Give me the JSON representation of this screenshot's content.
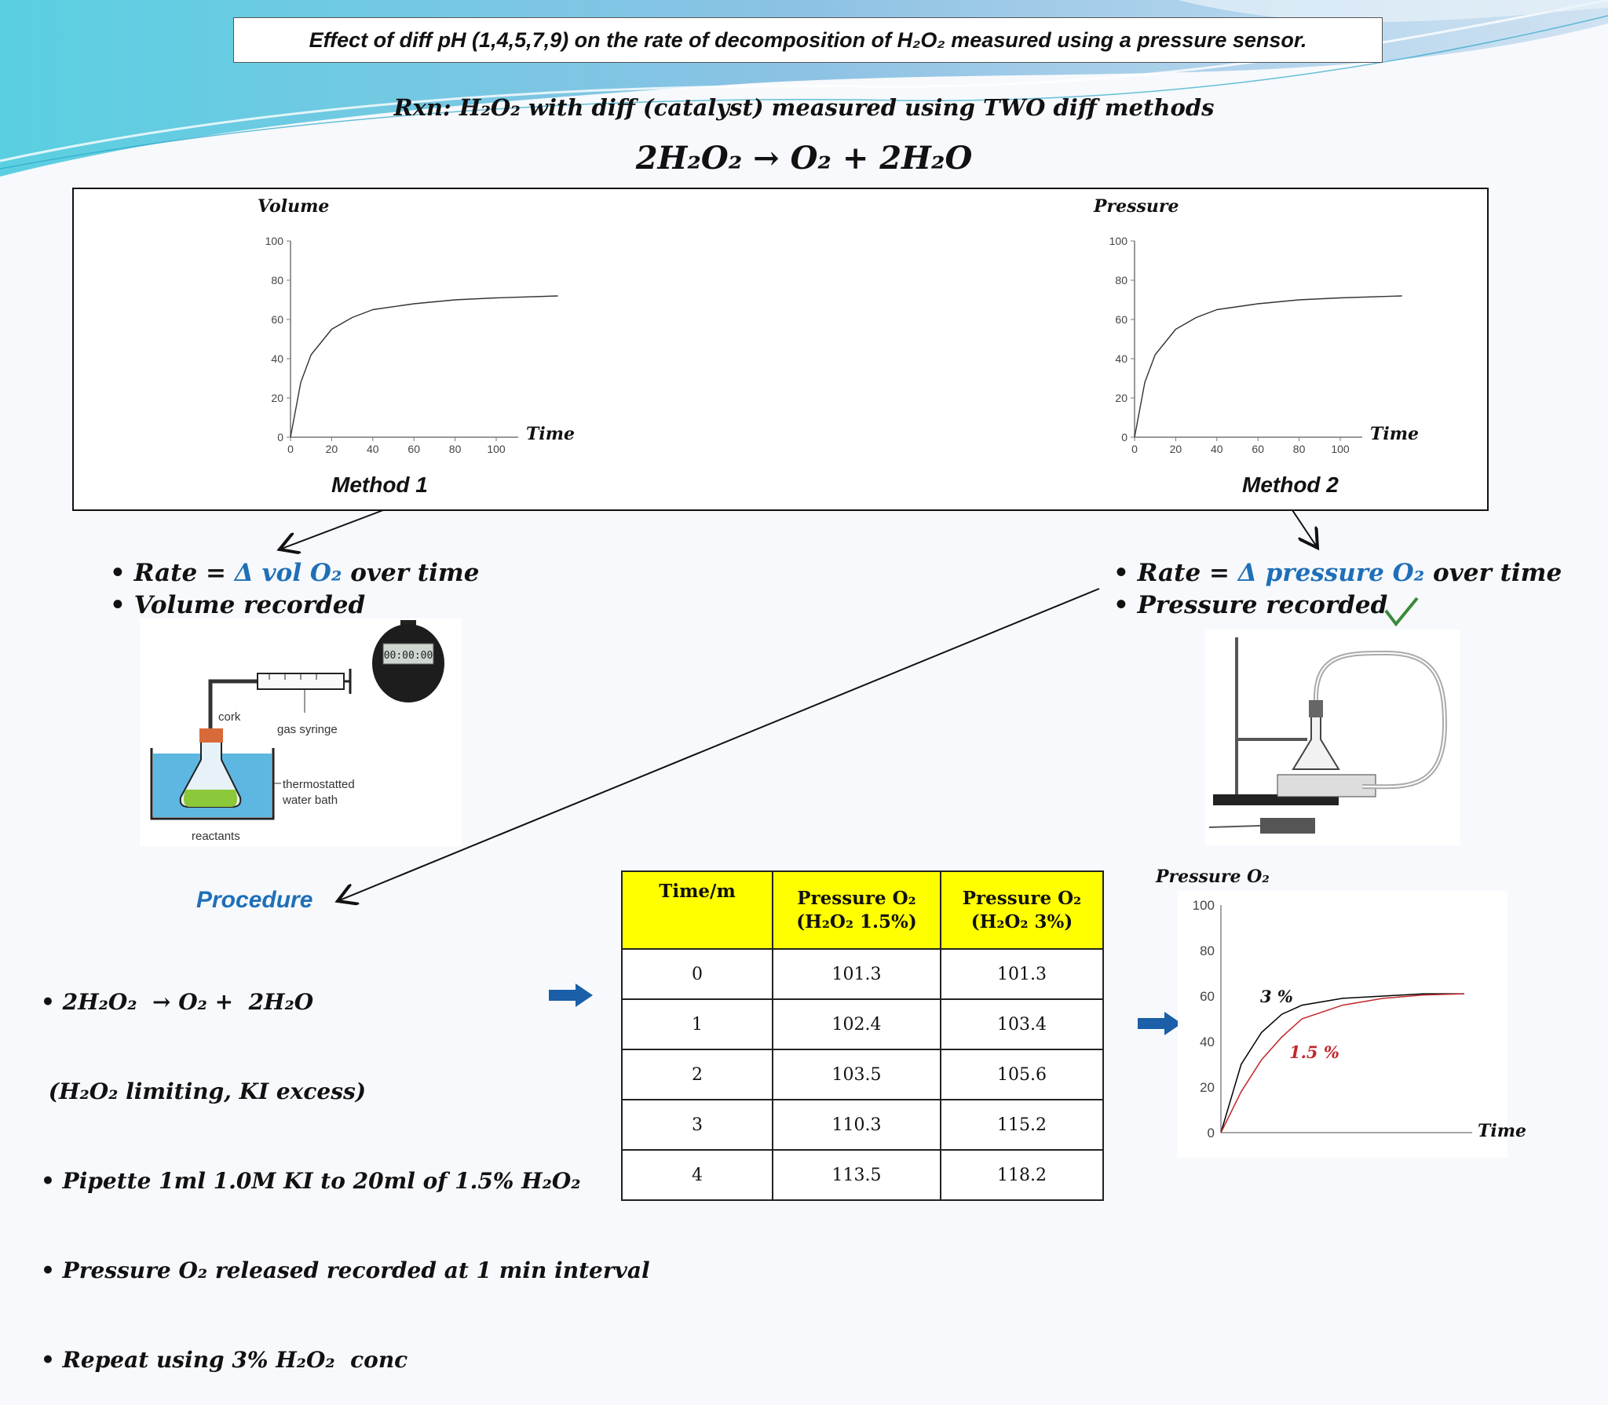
{
  "title": "Effect of diff pH (1,4,5,7,9) on the rate of decomposition of H₂O₂ measured using a pressure sensor.",
  "reaction_line": "Rxn: H₂O₂ with diff (catalyst) measured using TWO diff methods",
  "equation": "2H₂O₂  →  O₂ +  2H₂O",
  "method1": {
    "ylabel": "Volume",
    "xlabel": "Time",
    "label": "Method 1",
    "bullets": [
      "Rate  = ",
      "Δ vol O₂",
      "  over time",
      "Volume  recorded"
    ],
    "apparatus_labels": {
      "cork": "cork",
      "syringe": "gas syringe",
      "bath": "thermostatted water bath",
      "reactants": "reactants",
      "stopwatch": "00:00:00"
    }
  },
  "method2": {
    "ylabel": "Pressure",
    "xlabel": "Time",
    "label": "Method 2",
    "bullets": [
      "Rate  = ",
      "Δ pressure O₂",
      " over time",
      "Pressure recorded"
    ]
  },
  "procedure": {
    "title": "Procedure",
    "lines": [
      "• 2H₂O₂  → O₂ +  2H₂O",
      " (H₂O₂ limiting, KI excess)",
      "• Pipette 1ml 1.0M KI to 20ml of 1.5% H₂O₂",
      "• Pressure O₂ released recorded at 1 min interval",
      "• Repeat using 3% H₂O₂  conc"
    ]
  },
  "table": {
    "headers": [
      "Time/m",
      "Pressure O₂\n(H₂O₂ 1.5%)",
      "Pressure O₂\n(H₂O₂ 3%)"
    ],
    "rows": [
      [
        "0",
        "101.3",
        "101.3"
      ],
      [
        "1",
        "102.4",
        "103.4"
      ],
      [
        "2",
        "103.5",
        "105.6"
      ],
      [
        "3",
        "110.3",
        "115.2"
      ],
      [
        "4",
        "113.5",
        "118.2"
      ]
    ]
  },
  "chart_data": [
    {
      "type": "line",
      "ylabel": "Volume",
      "xlabel": "Time",
      "x_ticks": [
        0,
        20,
        40,
        60,
        80,
        100
      ],
      "y_ticks": [
        0,
        20,
        40,
        60,
        80,
        100
      ],
      "xlim": [
        0,
        100
      ],
      "ylim": [
        0,
        100
      ],
      "series": [
        {
          "x": [
            0,
            5,
            10,
            20,
            30,
            40,
            60,
            80,
            100,
            130
          ],
          "y": [
            0,
            28,
            42,
            55,
            61,
            65,
            68,
            70,
            71,
            72
          ]
        }
      ]
    },
    {
      "type": "line",
      "ylabel": "Pressure",
      "xlabel": "Time",
      "x_ticks": [
        0,
        20,
        40,
        60,
        80,
        100
      ],
      "y_ticks": [
        0,
        20,
        40,
        60,
        80,
        100
      ],
      "xlim": [
        0,
        100
      ],
      "ylim": [
        0,
        100
      ],
      "series": [
        {
          "x": [
            0,
            5,
            10,
            20,
            30,
            40,
            60,
            80,
            100,
            130
          ],
          "y": [
            0,
            28,
            42,
            55,
            61,
            65,
            68,
            70,
            71,
            72
          ]
        }
      ]
    },
    {
      "type": "line",
      "ylabel": "Pressure O₂",
      "xlabel": "Time",
      "y_ticks": [
        0,
        20,
        40,
        60,
        80,
        100
      ],
      "ylim": [
        0,
        100
      ],
      "series": [
        {
          "name": "3 %",
          "color": "#000000",
          "x": [
            0,
            10,
            20,
            30,
            40,
            60,
            80,
            100,
            120
          ],
          "y": [
            0,
            30,
            44,
            52,
            56,
            59,
            60,
            61,
            61
          ]
        },
        {
          "name": "1.5 %",
          "color": "#c0282d",
          "x": [
            0,
            10,
            20,
            30,
            40,
            60,
            80,
            100,
            120
          ],
          "y": [
            0,
            18,
            32,
            42,
            50,
            56,
            59,
            60.5,
            61
          ]
        }
      ]
    }
  ],
  "colors": {
    "accent_blue": "#1f6fb8",
    "table_header": "#ffff00",
    "arrow": "#1a5fa8",
    "red": "#c0282d",
    "check": "#3a8a3a"
  }
}
